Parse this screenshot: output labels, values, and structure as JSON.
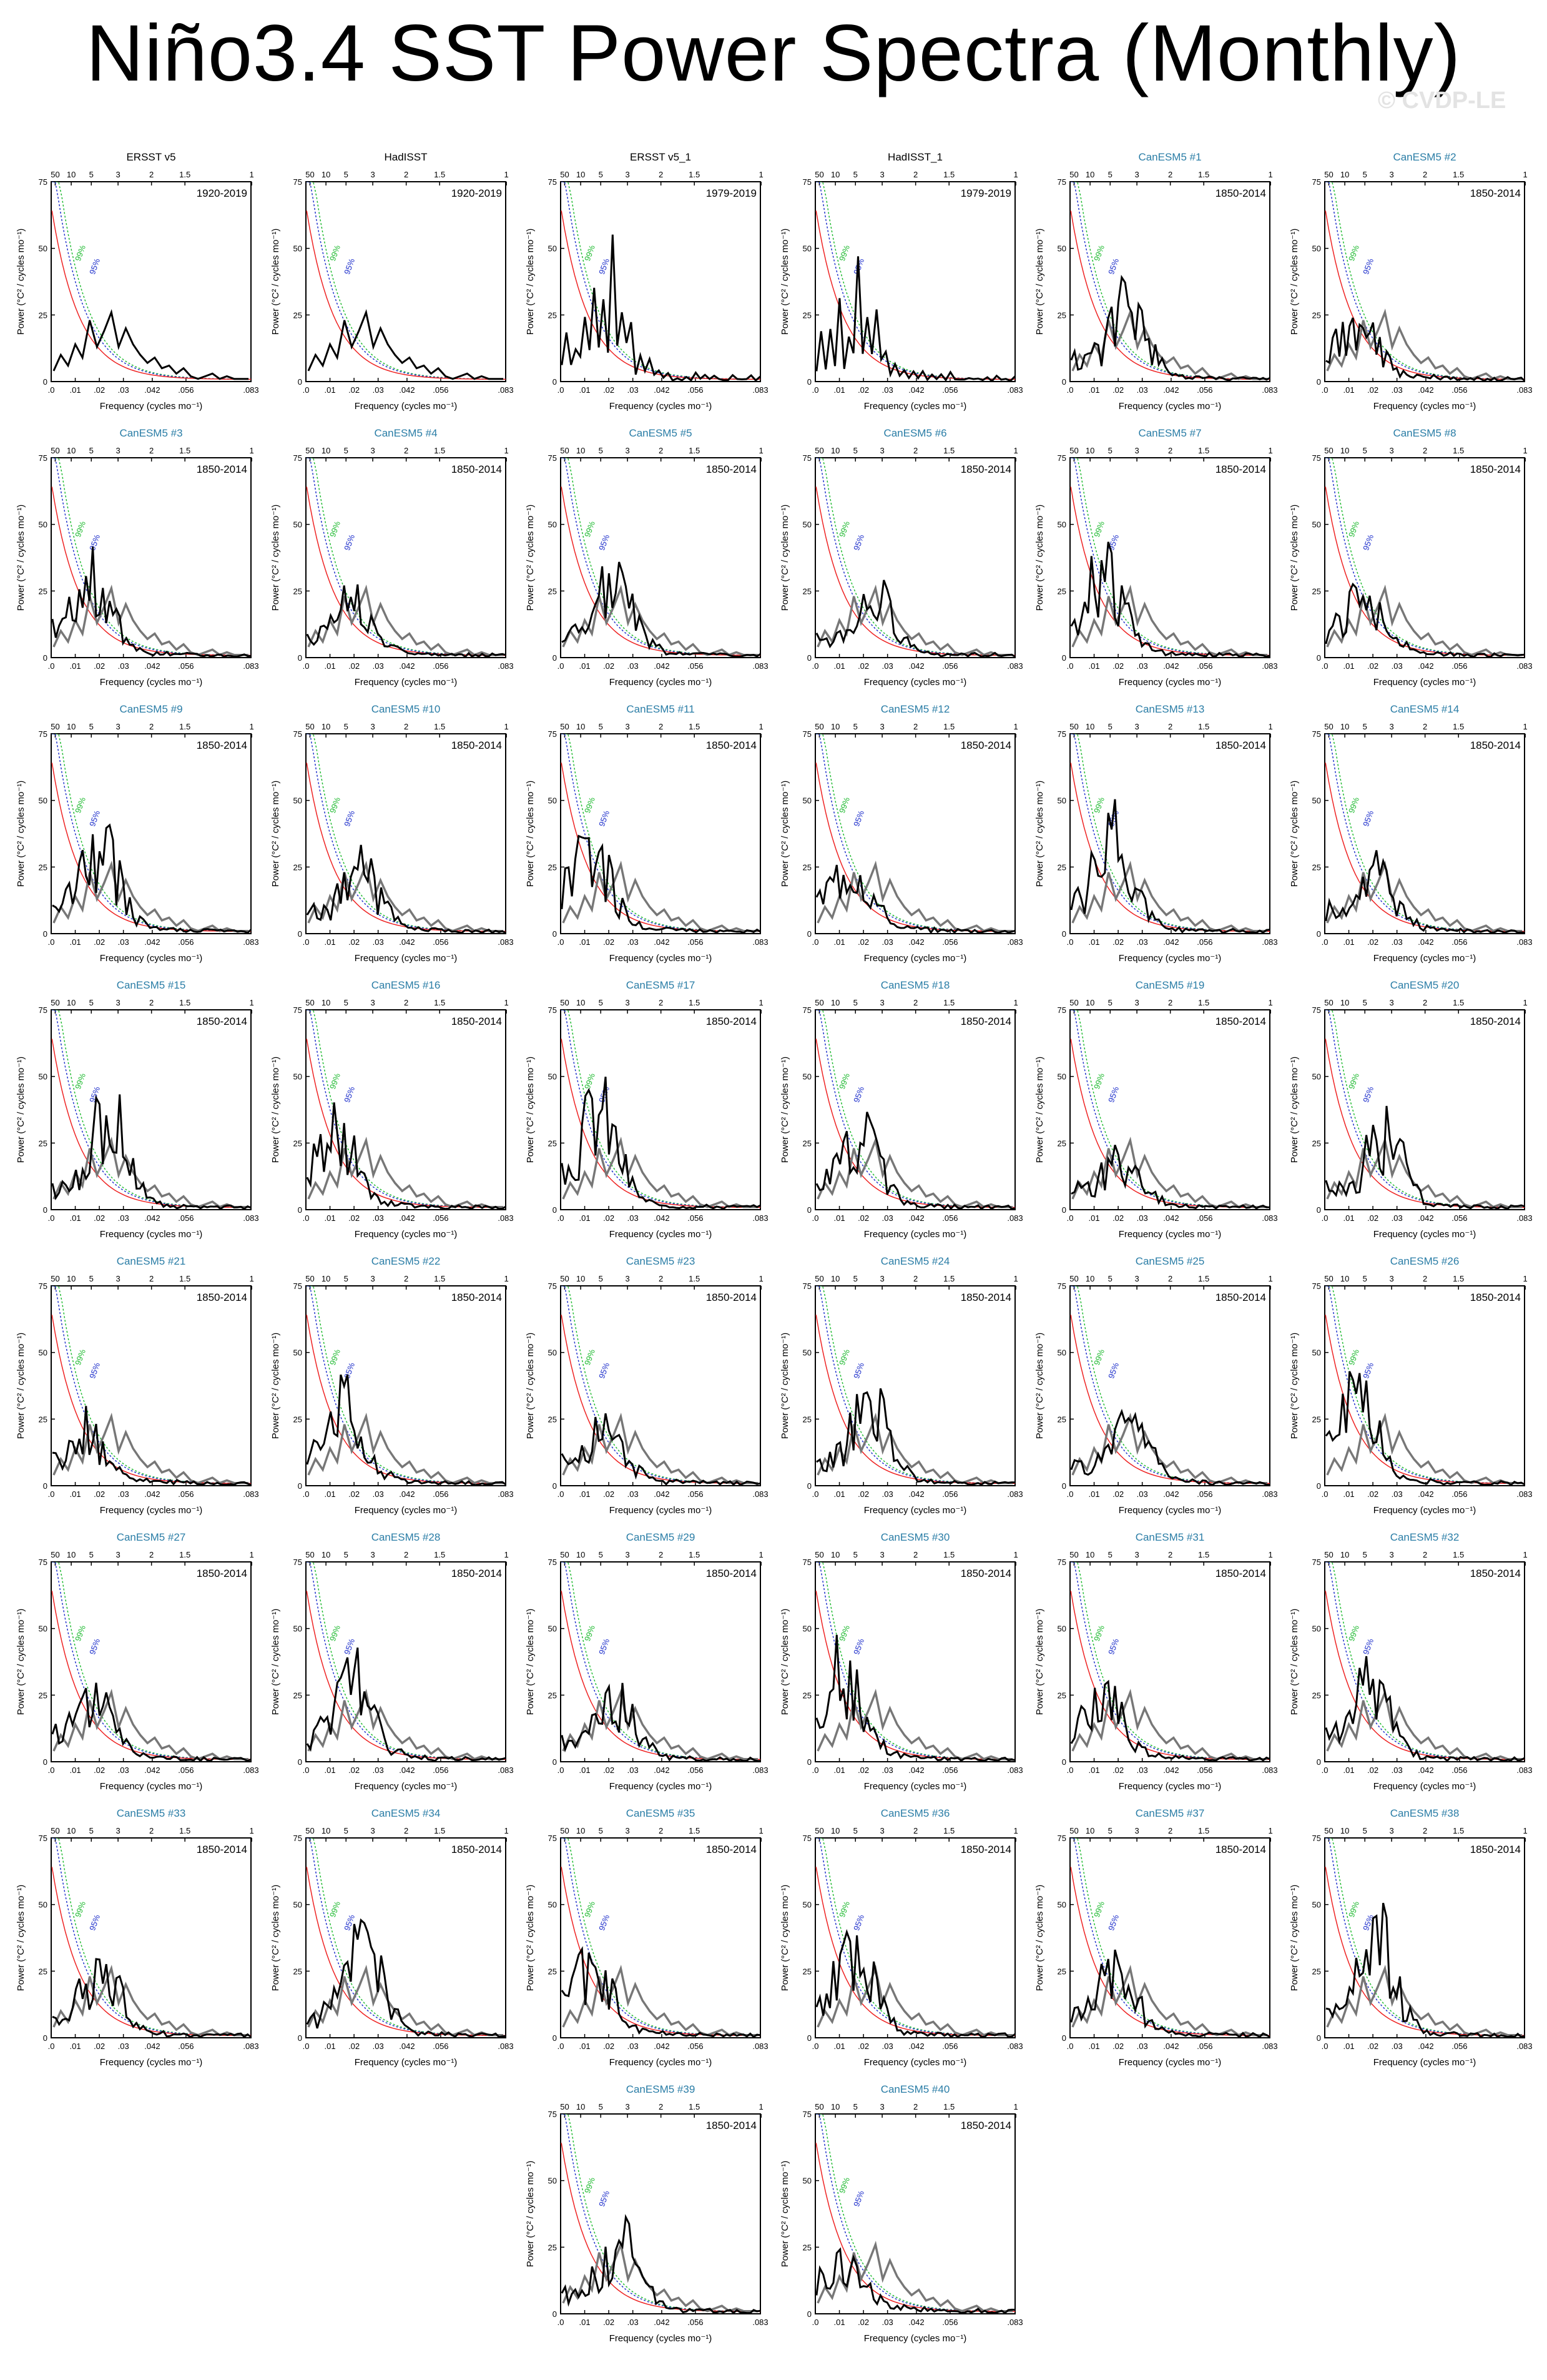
{
  "title": "Niño3.4 SST Power Spectra (Monthly)",
  "watermark": "© CVDP-LE",
  "colors": {
    "spectrum": "#000000",
    "observed_overlay": "#777777",
    "red_noise": "#ee2222",
    "conf_95": "#2233cc",
    "conf_99": "#22bb33",
    "model_title": "#2a7da6",
    "obs_title": "#000000"
  },
  "axis": {
    "ylabel": "Power (°C² / cycles mo⁻¹)",
    "xlabel": "Frequency (cycles mo⁻¹)",
    "x_ticks_bottom": [
      ".0",
      ".01",
      ".02",
      ".03",
      ".042",
      ".056",
      ".083"
    ],
    "x_ticks_top": [
      "50",
      "10",
      "5",
      "3",
      "2",
      "1.5",
      "1"
    ],
    "y_ticks": [
      "0",
      "25",
      "50",
      "75"
    ],
    "conf_labels": [
      "99%",
      "95%"
    ]
  },
  "chart_data": {
    "type": "line",
    "xlim": [
      0,
      0.083
    ],
    "ylim": [
      0,
      75
    ],
    "grid": false,
    "top_axis": "period (years)",
    "panels": [
      {
        "title": "ERSST v5",
        "period": "1920-2019",
        "kind": "obs"
      },
      {
        "title": "HadISST",
        "period": "1920-2019",
        "kind": "obs"
      },
      {
        "title": "ERSST v5_1",
        "period": "1979-2019",
        "kind": "obs"
      },
      {
        "title": "HadISST_1",
        "period": "1979-2019",
        "kind": "obs"
      },
      {
        "title": "CanESM5 #1",
        "period": "1850-2014",
        "kind": "model"
      },
      {
        "title": "CanESM5 #2",
        "period": "1850-2014",
        "kind": "model"
      },
      {
        "title": "CanESM5 #3",
        "period": "1850-2014",
        "kind": "model"
      },
      {
        "title": "CanESM5 #4",
        "period": "1850-2014",
        "kind": "model"
      },
      {
        "title": "CanESM5 #5",
        "period": "1850-2014",
        "kind": "model"
      },
      {
        "title": "CanESM5 #6",
        "period": "1850-2014",
        "kind": "model"
      },
      {
        "title": "CanESM5 #7",
        "period": "1850-2014",
        "kind": "model"
      },
      {
        "title": "CanESM5 #8",
        "period": "1850-2014",
        "kind": "model"
      },
      {
        "title": "CanESM5 #9",
        "period": "1850-2014",
        "kind": "model"
      },
      {
        "title": "CanESM5 #10",
        "period": "1850-2014",
        "kind": "model"
      },
      {
        "title": "CanESM5 #11",
        "period": "1850-2014",
        "kind": "model"
      },
      {
        "title": "CanESM5 #12",
        "period": "1850-2014",
        "kind": "model"
      },
      {
        "title": "CanESM5 #13",
        "period": "1850-2014",
        "kind": "model"
      },
      {
        "title": "CanESM5 #14",
        "period": "1850-2014",
        "kind": "model"
      },
      {
        "title": "CanESM5 #15",
        "period": "1850-2014",
        "kind": "model"
      },
      {
        "title": "CanESM5 #16",
        "period": "1850-2014",
        "kind": "model"
      },
      {
        "title": "CanESM5 #17",
        "period": "1850-2014",
        "kind": "model"
      },
      {
        "title": "CanESM5 #18",
        "period": "1850-2014",
        "kind": "model"
      },
      {
        "title": "CanESM5 #19",
        "period": "1850-2014",
        "kind": "model"
      },
      {
        "title": "CanESM5 #20",
        "period": "1850-2014",
        "kind": "model"
      },
      {
        "title": "CanESM5 #21",
        "period": "1850-2014",
        "kind": "model"
      },
      {
        "title": "CanESM5 #22",
        "period": "1850-2014",
        "kind": "model"
      },
      {
        "title": "CanESM5 #23",
        "period": "1850-2014",
        "kind": "model"
      },
      {
        "title": "CanESM5 #24",
        "period": "1850-2014",
        "kind": "model"
      },
      {
        "title": "CanESM5 #25",
        "period": "1850-2014",
        "kind": "model"
      },
      {
        "title": "CanESM5 #26",
        "period": "1850-2014",
        "kind": "model"
      },
      {
        "title": "CanESM5 #27",
        "period": "1850-2014",
        "kind": "model"
      },
      {
        "title": "CanESM5 #28",
        "period": "1850-2014",
        "kind": "model"
      },
      {
        "title": "CanESM5 #29",
        "period": "1850-2014",
        "kind": "model"
      },
      {
        "title": "CanESM5 #30",
        "period": "1850-2014",
        "kind": "model"
      },
      {
        "title": "CanESM5 #31",
        "period": "1850-2014",
        "kind": "model"
      },
      {
        "title": "CanESM5 #32",
        "period": "1850-2014",
        "kind": "model"
      },
      {
        "title": "CanESM5 #33",
        "period": "1850-2014",
        "kind": "model"
      },
      {
        "title": "CanESM5 #34",
        "period": "1850-2014",
        "kind": "model"
      },
      {
        "title": "CanESM5 #35",
        "period": "1850-2014",
        "kind": "model"
      },
      {
        "title": "CanESM5 #36",
        "period": "1850-2014",
        "kind": "model"
      },
      {
        "title": "CanESM5 #37",
        "period": "1850-2014",
        "kind": "model"
      },
      {
        "title": "CanESM5 #38",
        "period": "1850-2014",
        "kind": "model"
      },
      {
        "title": "CanESM5 #39",
        "period": "1850-2014",
        "kind": "model"
      },
      {
        "title": "CanESM5 #40",
        "period": "1850-2014",
        "kind": "model"
      }
    ],
    "observed_spectrum": {
      "x": [
        0.001,
        0.004,
        0.007,
        0.01,
        0.013,
        0.016,
        0.019,
        0.022,
        0.025,
        0.028,
        0.031,
        0.034,
        0.037,
        0.04,
        0.043,
        0.046,
        0.049,
        0.052,
        0.055,
        0.058,
        0.061,
        0.064,
        0.067,
        0.07,
        0.073,
        0.076,
        0.079,
        0.082
      ],
      "y": [
        4,
        10,
        6,
        14,
        9,
        23,
        13,
        19,
        26,
        13,
        20,
        14,
        10,
        7,
        9,
        5,
        6,
        3,
        5,
        2,
        1,
        2,
        3,
        1,
        2,
        1,
        1,
        1
      ]
    }
  }
}
